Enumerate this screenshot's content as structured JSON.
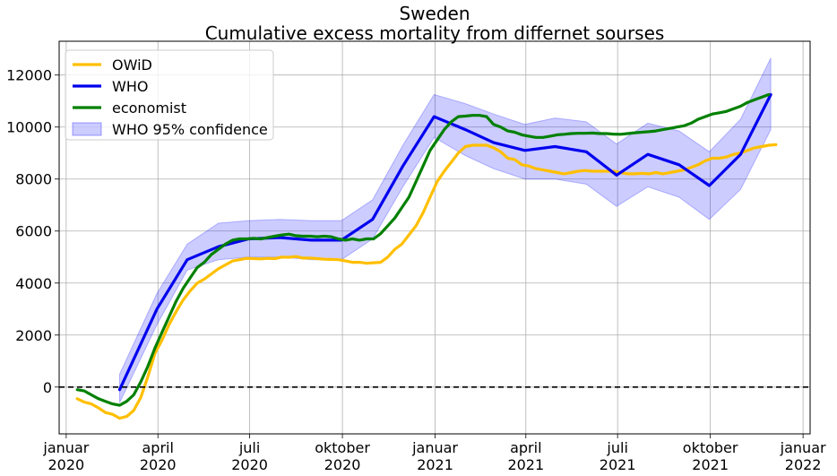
{
  "chart_data": {
    "type": "line",
    "title": "Sweden",
    "subtitle": "Cumulative excess mortality from differnet sourses",
    "xlabel": "",
    "ylabel": "",
    "xlim": [
      "2019-12-25",
      "2022-01-08"
    ],
    "ylim": [
      -1800,
      13300
    ],
    "grid": true,
    "legend_position": "top-left",
    "x_ticks": [
      {
        "date": "2020-01-01",
        "line1": "januar",
        "line2": "2020"
      },
      {
        "date": "2020-04-01",
        "line1": "april",
        "line2": "2020"
      },
      {
        "date": "2020-07-01",
        "line1": "juli",
        "line2": "2020"
      },
      {
        "date": "2020-10-01",
        "line1": "oktober",
        "line2": "2020"
      },
      {
        "date": "2021-01-01",
        "line1": "januar",
        "line2": "2021"
      },
      {
        "date": "2021-04-01",
        "line1": "april",
        "line2": "2021"
      },
      {
        "date": "2021-07-01",
        "line1": "juli",
        "line2": "2021"
      },
      {
        "date": "2021-10-01",
        "line1": "oktober",
        "line2": "2021"
      },
      {
        "date": "2022-01-01",
        "line1": "januar",
        "line2": "2022"
      }
    ],
    "y_ticks": [
      0,
      2000,
      4000,
      6000,
      8000,
      10000,
      12000
    ],
    "zero_line": {
      "y": 0,
      "style": "dashed",
      "color": "#000000"
    },
    "series": [
      {
        "name": "OWiD",
        "color": "#ffbf00",
        "points": [
          [
            "2020-01-12",
            -450
          ],
          [
            "2020-01-19",
            -580
          ],
          [
            "2020-01-26",
            -650
          ],
          [
            "2020-02-02",
            -800
          ],
          [
            "2020-02-09",
            -980
          ],
          [
            "2020-02-16",
            -1050
          ],
          [
            "2020-02-23",
            -1200
          ],
          [
            "2020-03-01",
            -1130
          ],
          [
            "2020-03-08",
            -900
          ],
          [
            "2020-03-15",
            -400
          ],
          [
            "2020-03-22",
            400
          ],
          [
            "2020-03-29",
            1300
          ],
          [
            "2020-04-05",
            1800
          ],
          [
            "2020-04-12",
            2400
          ],
          [
            "2020-04-19",
            2900
          ],
          [
            "2020-04-26",
            3350
          ],
          [
            "2020-05-03",
            3700
          ],
          [
            "2020-05-10",
            4000
          ],
          [
            "2020-05-17",
            4150
          ],
          [
            "2020-05-24",
            4350
          ],
          [
            "2020-05-31",
            4550
          ],
          [
            "2020-06-07",
            4700
          ],
          [
            "2020-06-14",
            4850
          ],
          [
            "2020-06-21",
            4900
          ],
          [
            "2020-06-28",
            4950
          ],
          [
            "2020-07-05",
            4940
          ],
          [
            "2020-07-12",
            4930
          ],
          [
            "2020-07-19",
            4950
          ],
          [
            "2020-07-26",
            4940
          ],
          [
            "2020-08-02",
            5000
          ],
          [
            "2020-08-09",
            4990
          ],
          [
            "2020-08-16",
            5020
          ],
          [
            "2020-08-23",
            4960
          ],
          [
            "2020-08-30",
            4960
          ],
          [
            "2020-09-06",
            4940
          ],
          [
            "2020-09-13",
            4920
          ],
          [
            "2020-09-20",
            4910
          ],
          [
            "2020-09-27",
            4900
          ],
          [
            "2020-10-04",
            4850
          ],
          [
            "2020-10-11",
            4800
          ],
          [
            "2020-10-18",
            4800
          ],
          [
            "2020-10-25",
            4760
          ],
          [
            "2020-11-01",
            4780
          ],
          [
            "2020-11-08",
            4800
          ],
          [
            "2020-11-15",
            5000
          ],
          [
            "2020-11-22",
            5300
          ],
          [
            "2020-11-29",
            5500
          ],
          [
            "2020-12-06",
            5850
          ],
          [
            "2020-12-13",
            6200
          ],
          [
            "2020-12-20",
            6700
          ],
          [
            "2020-12-27",
            7300
          ],
          [
            "2021-01-03",
            7900
          ],
          [
            "2021-01-10",
            8300
          ],
          [
            "2021-01-17",
            8650
          ],
          [
            "2021-01-24",
            9000
          ],
          [
            "2021-01-31",
            9250
          ],
          [
            "2021-02-07",
            9300
          ],
          [
            "2021-02-14",
            9300
          ],
          [
            "2021-02-21",
            9300
          ],
          [
            "2021-02-28",
            9200
          ],
          [
            "2021-03-07",
            9050
          ],
          [
            "2021-03-14",
            8800
          ],
          [
            "2021-03-21",
            8750
          ],
          [
            "2021-03-28",
            8550
          ],
          [
            "2021-04-04",
            8500
          ],
          [
            "2021-04-11",
            8400
          ],
          [
            "2021-04-18",
            8350
          ],
          [
            "2021-04-25",
            8300
          ],
          [
            "2021-05-02",
            8250
          ],
          [
            "2021-05-09",
            8200
          ],
          [
            "2021-05-16",
            8250
          ],
          [
            "2021-05-23",
            8300
          ],
          [
            "2021-05-30",
            8330
          ],
          [
            "2021-06-06",
            8300
          ],
          [
            "2021-06-13",
            8300
          ],
          [
            "2021-06-20",
            8300
          ],
          [
            "2021-06-27",
            8300
          ],
          [
            "2021-07-04",
            8250
          ],
          [
            "2021-07-11",
            8200
          ],
          [
            "2021-07-18",
            8200
          ],
          [
            "2021-07-25",
            8220
          ],
          [
            "2021-08-01",
            8200
          ],
          [
            "2021-08-08",
            8250
          ],
          [
            "2021-08-15",
            8200
          ],
          [
            "2021-08-22",
            8250
          ],
          [
            "2021-08-29",
            8300
          ],
          [
            "2021-09-05",
            8350
          ],
          [
            "2021-09-12",
            8450
          ],
          [
            "2021-09-19",
            8550
          ],
          [
            "2021-09-26",
            8700
          ],
          [
            "2021-10-03",
            8800
          ],
          [
            "2021-10-10",
            8800
          ],
          [
            "2021-10-17",
            8850
          ],
          [
            "2021-10-24",
            8950
          ],
          [
            "2021-10-31",
            9000
          ],
          [
            "2021-11-07",
            9100
          ],
          [
            "2021-11-14",
            9200
          ],
          [
            "2021-11-21",
            9250
          ],
          [
            "2021-11-28",
            9300
          ],
          [
            "2021-12-05",
            9320
          ]
        ]
      },
      {
        "name": "WHO",
        "color": "#0000ee",
        "points": [
          [
            "2020-02-23",
            -100
          ],
          [
            "2020-03-31",
            3000
          ],
          [
            "2020-04-30",
            4900
          ],
          [
            "2020-05-31",
            5400
          ],
          [
            "2020-06-30",
            5700
          ],
          [
            "2020-07-31",
            5750
          ],
          [
            "2020-08-31",
            5650
          ],
          [
            "2020-09-30",
            5650
          ],
          [
            "2020-10-31",
            6450
          ],
          [
            "2020-11-30",
            8500
          ],
          [
            "2020-12-31",
            10400
          ],
          [
            "2021-01-31",
            9900
          ],
          [
            "2021-02-28",
            9400
          ],
          [
            "2021-03-31",
            9100
          ],
          [
            "2021-04-30",
            9250
          ],
          [
            "2021-05-31",
            9050
          ],
          [
            "2021-06-30",
            8150
          ],
          [
            "2021-07-31",
            8950
          ],
          [
            "2021-08-31",
            8550
          ],
          [
            "2021-09-30",
            7750
          ],
          [
            "2021-10-31",
            8950
          ],
          [
            "2021-11-30",
            11250
          ]
        ]
      },
      {
        "name": "economist",
        "color": "#008000",
        "points": [
          [
            "2020-01-12",
            -100
          ],
          [
            "2020-01-19",
            -150
          ],
          [
            "2020-01-26",
            -300
          ],
          [
            "2020-02-02",
            -450
          ],
          [
            "2020-02-09",
            -550
          ],
          [
            "2020-02-16",
            -650
          ],
          [
            "2020-02-23",
            -700
          ],
          [
            "2020-03-01",
            -550
          ],
          [
            "2020-03-08",
            -300
          ],
          [
            "2020-03-15",
            200
          ],
          [
            "2020-03-22",
            800
          ],
          [
            "2020-03-29",
            1500
          ],
          [
            "2020-04-05",
            2100
          ],
          [
            "2020-04-12",
            2700
          ],
          [
            "2020-04-19",
            3300
          ],
          [
            "2020-04-26",
            3800
          ],
          [
            "2020-05-03",
            4200
          ],
          [
            "2020-05-10",
            4600
          ],
          [
            "2020-05-17",
            4800
          ],
          [
            "2020-05-24",
            5100
          ],
          [
            "2020-05-31",
            5300
          ],
          [
            "2020-06-07",
            5500
          ],
          [
            "2020-06-14",
            5650
          ],
          [
            "2020-06-21",
            5700
          ],
          [
            "2020-06-28",
            5700
          ],
          [
            "2020-07-05",
            5720
          ],
          [
            "2020-07-12",
            5700
          ],
          [
            "2020-07-19",
            5750
          ],
          [
            "2020-07-26",
            5800
          ],
          [
            "2020-08-02",
            5850
          ],
          [
            "2020-08-09",
            5880
          ],
          [
            "2020-08-16",
            5820
          ],
          [
            "2020-08-23",
            5800
          ],
          [
            "2020-08-30",
            5800
          ],
          [
            "2020-09-06",
            5780
          ],
          [
            "2020-09-13",
            5800
          ],
          [
            "2020-09-20",
            5780
          ],
          [
            "2020-09-27",
            5700
          ],
          [
            "2020-10-04",
            5650
          ],
          [
            "2020-10-11",
            5700
          ],
          [
            "2020-10-18",
            5650
          ],
          [
            "2020-10-25",
            5700
          ],
          [
            "2020-11-01",
            5700
          ],
          [
            "2020-11-08",
            5900
          ],
          [
            "2020-11-15",
            6200
          ],
          [
            "2020-11-22",
            6500
          ],
          [
            "2020-11-29",
            6900
          ],
          [
            "2020-12-06",
            7300
          ],
          [
            "2020-12-13",
            7900
          ],
          [
            "2020-12-20",
            8500
          ],
          [
            "2020-12-27",
            9100
          ],
          [
            "2021-01-03",
            9500
          ],
          [
            "2021-01-10",
            9900
          ],
          [
            "2021-01-17",
            10200
          ],
          [
            "2021-01-24",
            10400
          ],
          [
            "2021-01-31",
            10420
          ],
          [
            "2021-02-07",
            10450
          ],
          [
            "2021-02-14",
            10450
          ],
          [
            "2021-02-21",
            10400
          ],
          [
            "2021-02-28",
            10100
          ],
          [
            "2021-03-07",
            10000
          ],
          [
            "2021-03-14",
            9850
          ],
          [
            "2021-03-21",
            9800
          ],
          [
            "2021-03-28",
            9700
          ],
          [
            "2021-04-04",
            9650
          ],
          [
            "2021-04-11",
            9600
          ],
          [
            "2021-04-18",
            9600
          ],
          [
            "2021-04-25",
            9650
          ],
          [
            "2021-05-02",
            9700
          ],
          [
            "2021-05-09",
            9720
          ],
          [
            "2021-05-16",
            9750
          ],
          [
            "2021-05-23",
            9760
          ],
          [
            "2021-05-30",
            9760
          ],
          [
            "2021-06-06",
            9770
          ],
          [
            "2021-06-13",
            9750
          ],
          [
            "2021-06-20",
            9750
          ],
          [
            "2021-06-27",
            9730
          ],
          [
            "2021-07-04",
            9720
          ],
          [
            "2021-07-11",
            9750
          ],
          [
            "2021-07-18",
            9780
          ],
          [
            "2021-07-25",
            9800
          ],
          [
            "2021-08-01",
            9820
          ],
          [
            "2021-08-08",
            9850
          ],
          [
            "2021-08-15",
            9900
          ],
          [
            "2021-08-22",
            9950
          ],
          [
            "2021-08-29",
            10000
          ],
          [
            "2021-09-05",
            10050
          ],
          [
            "2021-09-12",
            10150
          ],
          [
            "2021-09-19",
            10300
          ],
          [
            "2021-09-26",
            10400
          ],
          [
            "2021-10-03",
            10500
          ],
          [
            "2021-10-10",
            10550
          ],
          [
            "2021-10-17",
            10600
          ],
          [
            "2021-10-24",
            10700
          ],
          [
            "2021-10-31",
            10800
          ],
          [
            "2021-11-07",
            10950
          ],
          [
            "2021-11-14",
            11050
          ],
          [
            "2021-11-21",
            11150
          ],
          [
            "2021-11-28",
            11250
          ]
        ]
      }
    ],
    "band": {
      "name": "WHO 95% confidence",
      "color": "#0000ff",
      "opacity": 0.2,
      "points": [
        [
          "2020-02-23",
          -600,
          500
        ],
        [
          "2020-03-31",
          2400,
          3600
        ],
        [
          "2020-04-30",
          4500,
          5500
        ],
        [
          "2020-05-31",
          4900,
          6300
        ],
        [
          "2020-06-30",
          5000,
          6400
        ],
        [
          "2020-07-31",
          5000,
          6450
        ],
        [
          "2020-08-31",
          4900,
          6400
        ],
        [
          "2020-09-30",
          4900,
          6400
        ],
        [
          "2020-10-31",
          5700,
          7200
        ],
        [
          "2020-11-30",
          7700,
          9300
        ],
        [
          "2020-12-31",
          9600,
          11250
        ],
        [
          "2021-01-31",
          8900,
          10900
        ],
        [
          "2021-02-28",
          8400,
          10500
        ],
        [
          "2021-03-31",
          8000,
          10100
        ],
        [
          "2021-04-30",
          8000,
          10350
        ],
        [
          "2021-05-31",
          7800,
          10200
        ],
        [
          "2021-06-30",
          6950,
          9350
        ],
        [
          "2021-07-31",
          7700,
          10150
        ],
        [
          "2021-08-31",
          7300,
          9850
        ],
        [
          "2021-09-30",
          6450,
          9050
        ],
        [
          "2021-10-31",
          7600,
          10300
        ],
        [
          "2021-11-30",
          9900,
          12650
        ]
      ]
    }
  }
}
